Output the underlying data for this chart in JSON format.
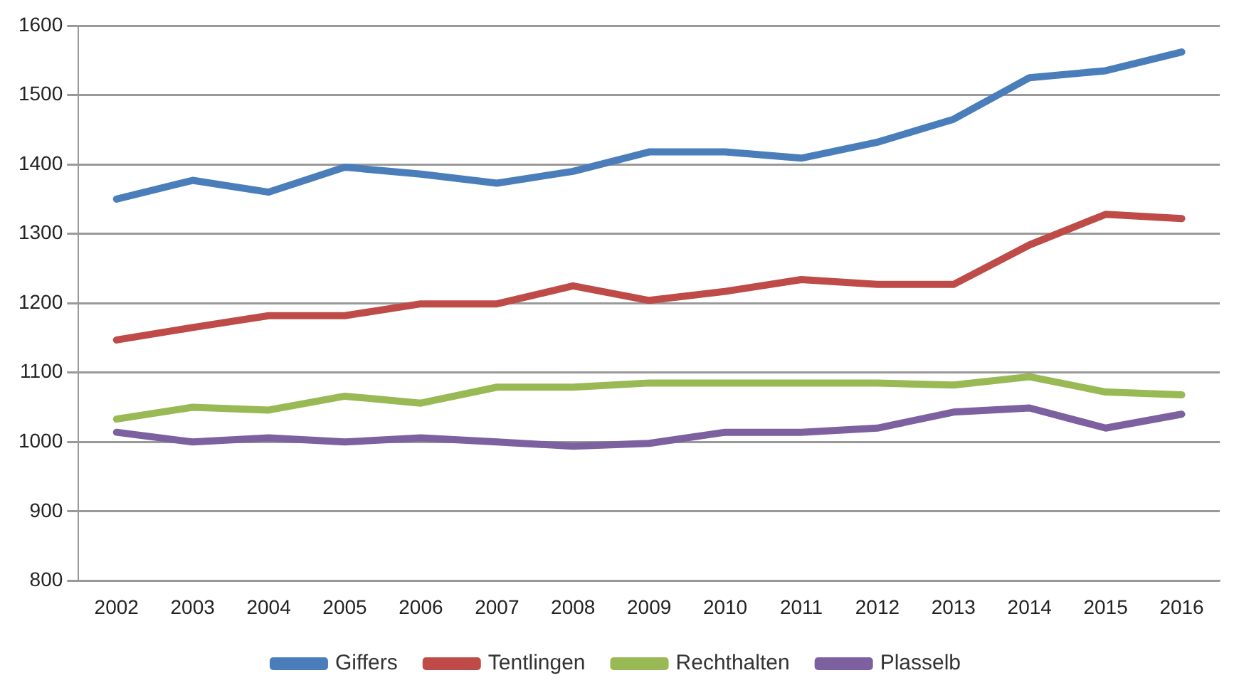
{
  "chart_data": {
    "type": "line",
    "categories": [
      "2002",
      "2003",
      "2004",
      "2005",
      "2006",
      "2007",
      "2008",
      "2009",
      "2010",
      "2011",
      "2012",
      "2013",
      "2014",
      "2015",
      "2016"
    ],
    "series": [
      {
        "name": "Giffers",
        "color": "#4a7ebb",
        "values": [
          1350,
          1377,
          1360,
          1396,
          1386,
          1373,
          1390,
          1418,
          1418,
          1409,
          1432,
          1465,
          1525,
          1535,
          1562
        ]
      },
      {
        "name": "Tentlingen",
        "color": "#be4b48",
        "values": [
          1147,
          1165,
          1182,
          1182,
          1199,
          1199,
          1225,
          1204,
          1217,
          1234,
          1227,
          1227,
          1284,
          1328,
          1322
        ]
      },
      {
        "name": "Rechthalten",
        "color": "#98b954",
        "values": [
          1033,
          1050,
          1046,
          1066,
          1056,
          1079,
          1079,
          1085,
          1085,
          1085,
          1085,
          1082,
          1094,
          1072,
          1068
        ]
      },
      {
        "name": "Plasselb",
        "color": "#7d60a0",
        "values": [
          1014,
          1000,
          1006,
          1000,
          1006,
          1000,
          994,
          998,
          1014,
          1014,
          1020,
          1043,
          1049,
          1020,
          1040
        ]
      }
    ],
    "ylim": [
      800,
      1600
    ],
    "yticks": [
      800,
      900,
      1000,
      1100,
      1200,
      1300,
      1400,
      1500,
      1600
    ],
    "grid": "y",
    "legend": "bottom",
    "marker": "none",
    "line_style": "solid"
  }
}
